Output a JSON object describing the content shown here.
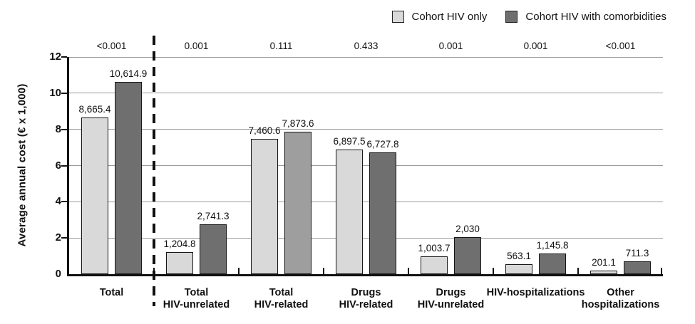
{
  "legend": {
    "items": [
      {
        "label": "Cohort HIV only",
        "color": "#d9d9d9"
      },
      {
        "label": "Cohort HIV with comorbidities",
        "color": "#6f6f6f"
      }
    ]
  },
  "chart_data": {
    "type": "bar",
    "title": "",
    "xlabel": "",
    "ylabel": "Average annual cost (€ x 1,000)",
    "ylim": [
      0,
      12
    ],
    "yticks": [
      0,
      2,
      4,
      6,
      8,
      10,
      12
    ],
    "grid": true,
    "legend_position": "top-right",
    "value_unit": "€",
    "axis_unit_scale": 1000,
    "categories": [
      "Total",
      "Total HIV-unrelated",
      "Total HIV-related",
      "Drugs HIV-related",
      "Drugs HIV-unrelated",
      "HIV-hospitalizations",
      "Other hospitalizations"
    ],
    "category_label_lines": [
      [
        "Total"
      ],
      [
        "Total",
        "HIV-unrelated"
      ],
      [
        "Total",
        "HIV-related"
      ],
      [
        "Drugs",
        "HIV-related"
      ],
      [
        "Drugs",
        "HIV-unrelated"
      ],
      [
        "HIV-hospitalizations"
      ],
      [
        "Other",
        "hospitalizations"
      ]
    ],
    "p_values": [
      "<0.001",
      "0.001",
      "0.111",
      "0.433",
      "0.001",
      "0.001",
      "<0.001"
    ],
    "separator_after_category": "Total",
    "series": [
      {
        "name": "Cohort HIV only",
        "color": "#d9d9d9",
        "values": [
          8665.4,
          1204.8,
          7460.6,
          6897.5,
          1003.7,
          563.1,
          201.1
        ],
        "value_labels": [
          "8,665.4",
          "1,204.8",
          "7,460.6",
          "6,897.5",
          "1,003.7",
          "563.1",
          "201.1"
        ]
      },
      {
        "name": "Cohort HIV with comorbidities",
        "color": "#6f6f6f",
        "bar_colors": [
          "#6f6f6f",
          "#6f6f6f",
          "#9e9e9e",
          "#6f6f6f",
          "#6f6f6f",
          "#6f6f6f",
          "#6f6f6f"
        ],
        "values": [
          10614.9,
          2741.3,
          7873.6,
          6727.8,
          2030,
          1145.8,
          711.3
        ],
        "value_labels": [
          "10,614.9",
          "2,741.3",
          "7,873.6",
          "6,727.8",
          "2,030",
          "1,145.8",
          "711.3"
        ]
      }
    ]
  }
}
